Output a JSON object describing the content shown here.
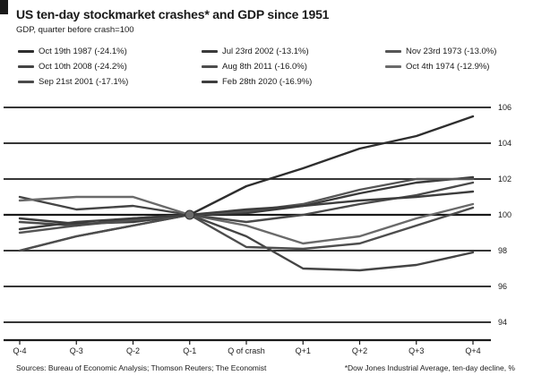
{
  "header": {
    "title": "US ten-day stockmarket crashes* and GDP since 1951",
    "subtitle": "GDP, quarter before crash=100"
  },
  "footer": {
    "source": "Sources: Bureau of Economic Analysis; Thomson Reuters; The Economist",
    "note": "*Dow Jones Industrial Average, ten-day decline, %"
  },
  "colors": {
    "grid": "#1a1a1a",
    "series": [
      "#2e2e2e",
      "#3a3a3a",
      "#555555",
      "#444444",
      "#4d4d4d",
      "#6a6a6a",
      "#4a4a4a",
      "#3d3d3d"
    ]
  },
  "chart_data": {
    "type": "line",
    "categories": [
      "Q-4",
      "Q-3",
      "Q-2",
      "Q-1",
      "Q of crash",
      "Q+1",
      "Q+2",
      "Q+3",
      "Q+4"
    ],
    "ylim": [
      94,
      104
    ],
    "yticks": [
      94,
      96,
      98,
      100,
      102,
      104,
      106
    ],
    "ytick_labels": [
      "94",
      "96",
      "98",
      "100",
      "102",
      "104",
      "106"
    ],
    "series": [
      {
        "name": "Oct 19th 1987 (-24.1%)",
        "values": [
          98.0,
          98.8,
          99.4,
          100,
          101.6,
          102.6,
          103.7,
          104.4,
          105.5
        ]
      },
      {
        "name": "Jul 23rd 2002 (-13.1%)",
        "values": [
          99.8,
          99.5,
          99.6,
          100,
          100.1,
          100.5,
          101.2,
          101.8,
          102.1
        ]
      },
      {
        "name": "Nov 23rd 1973 (-13.0%)",
        "values": [
          99.0,
          99.4,
          99.7,
          100,
          100.2,
          100.6,
          101.4,
          102.0,
          102.0
        ]
      },
      {
        "name": "Oct 10th 2008 (-24.2%)",
        "values": [
          101.0,
          100.3,
          100.5,
          100,
          98.8,
          97.0,
          96.9,
          97.2,
          97.9
        ]
      },
      {
        "name": "Aug 8th 2011 (-16.0%)",
        "values": [
          98.0,
          98.8,
          99.4,
          100,
          98.2,
          98.1,
          98.4,
          99.4,
          100.4
        ]
      },
      {
        "name": "Oct 4th 1974 (-12.9%)",
        "values": [
          100.8,
          101.0,
          101.0,
          100,
          99.4,
          98.4,
          98.8,
          99.8,
          100.6
        ]
      },
      {
        "name": "Sep 21st 2001 (-17.1%)",
        "values": [
          99.6,
          99.4,
          99.8,
          100,
          99.6,
          100.0,
          100.6,
          101.1,
          101.8
        ]
      },
      {
        "name": "Feb 28th 2020 (-16.9%)",
        "values": [
          99.2,
          99.6,
          99.8,
          100,
          100.3,
          100.5,
          100.8,
          101.0,
          101.3
        ]
      }
    ]
  }
}
